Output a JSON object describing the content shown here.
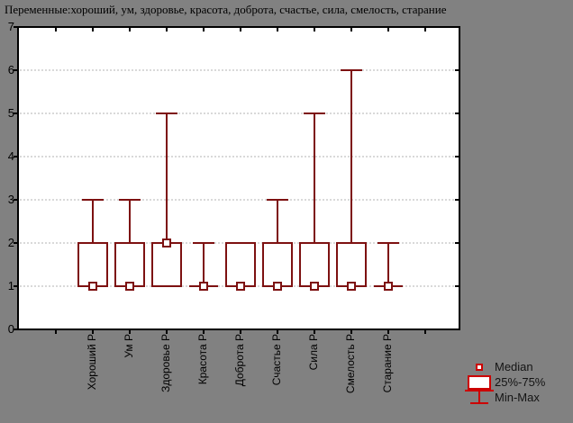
{
  "title": "Переменные:хороший, ум, здоровье, красота, доброта, счастье, сила, смелость, старание",
  "chart_data": {
    "type": "box",
    "title": "Переменные:хороший, ум, здоровье, красота, доброта, счастье, сила, смелость, старание",
    "categories": [
      "Хороший Р",
      "Ум Р",
      "Здоровье Р",
      "Красота Р",
      "Доброта Р",
      "Счастье Р",
      "Сила Р",
      "Смелость Р",
      "Старание Р"
    ],
    "series": [
      {
        "name": "Хороший Р",
        "min": 1,
        "q1": 1,
        "median": 1,
        "q3": 2,
        "max": 3
      },
      {
        "name": "Ум Р",
        "min": 1,
        "q1": 1,
        "median": 1,
        "q3": 2,
        "max": 3
      },
      {
        "name": "Здоровье Р",
        "min": 1,
        "q1": 1,
        "median": 2,
        "q3": 2,
        "max": 5
      },
      {
        "name": "Красота Р",
        "min": 1,
        "q1": 1,
        "median": 1,
        "q3": 1,
        "max": 2
      },
      {
        "name": "Доброта Р",
        "min": 1,
        "q1": 1,
        "median": 1,
        "q3": 2,
        "max": 2
      },
      {
        "name": "Счастье Р",
        "min": 1,
        "q1": 1,
        "median": 1,
        "q3": 2,
        "max": 3
      },
      {
        "name": "Сила Р",
        "min": 1,
        "q1": 1,
        "median": 1,
        "q3": 2,
        "max": 5
      },
      {
        "name": "Смелость Р",
        "min": 1,
        "q1": 1,
        "median": 1,
        "q3": 2,
        "max": 6
      },
      {
        "name": "Старание Р",
        "min": 1,
        "q1": 1,
        "median": 1,
        "q3": 1,
        "max": 2
      }
    ],
    "ylim": [
      0,
      7
    ],
    "yticks": [
      0,
      1,
      2,
      3,
      4,
      5,
      6,
      7
    ],
    "grid": "horizontal dotted lines at 1-6",
    "legend": {
      "position": "bottom-right",
      "items": [
        {
          "marker": "square",
          "label": "Median"
        },
        {
          "marker": "box",
          "label": "25%-75%"
        },
        {
          "marker": "whisker",
          "label": "Min-Max"
        }
      ]
    },
    "colors": {
      "outer_background": "#818181",
      "plot_background": "#ffffff",
      "axis": "#000000",
      "grid_line": "#b3b3b3",
      "box_stroke": "#7d1111",
      "legend_stroke": "#cc0000",
      "text": "#000000"
    }
  }
}
